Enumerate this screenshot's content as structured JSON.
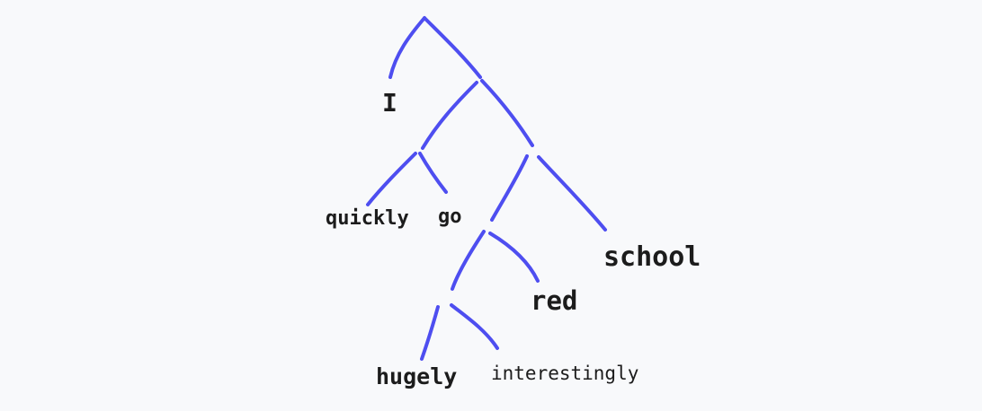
{
  "colors": {
    "background": "#f8f9fb",
    "branch": "#4e4ef0",
    "text": "#1c1c1c"
  },
  "words": {
    "w1": "I",
    "w2": "quickly",
    "w3": "go",
    "w4": "school",
    "w5": "red",
    "w6": "hugely",
    "w7": "interestingly"
  }
}
